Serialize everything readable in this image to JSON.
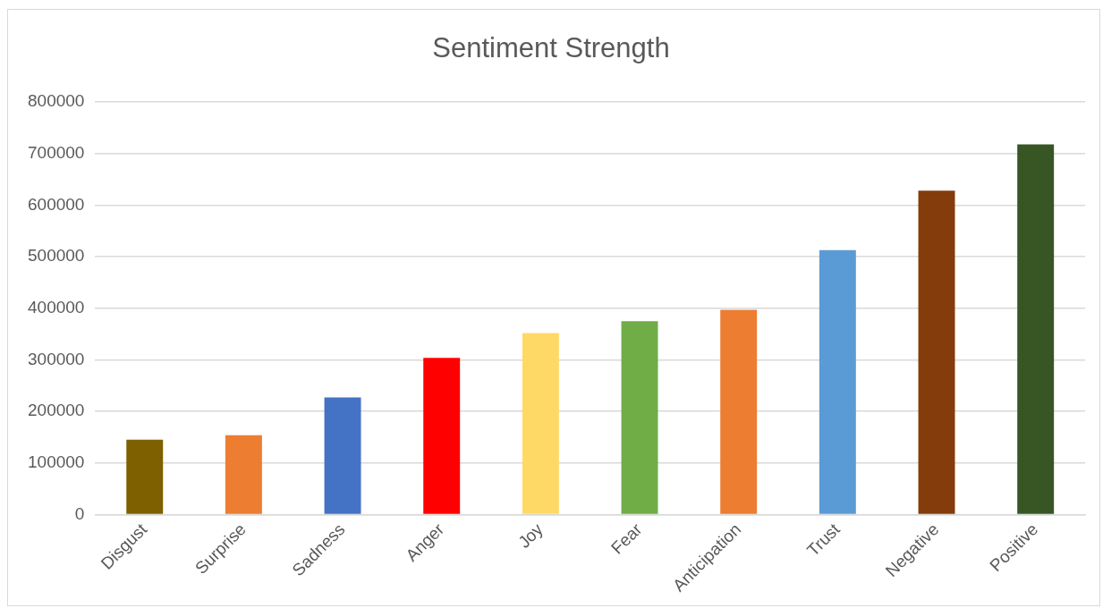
{
  "chart_data": {
    "type": "bar",
    "title": "Sentiment Strength",
    "categories": [
      "Disgust",
      "Surprise",
      "Sadness",
      "Anger",
      "Joy",
      "Fear",
      "Anticipation",
      "Trust",
      "Negative",
      "Positive"
    ],
    "values": [
      145000,
      154000,
      227000,
      304000,
      352000,
      375000,
      397000,
      513000,
      628000,
      718000
    ],
    "colors": [
      "#7f6000",
      "#ed7d31",
      "#4472c4",
      "#ff0000",
      "#ffd966",
      "#70ad47",
      "#ed7d31",
      "#5b9bd5",
      "#843c0c",
      "#375623"
    ],
    "ylim": [
      0,
      800000
    ],
    "yticks": [
      0,
      100000,
      200000,
      300000,
      400000,
      500000,
      600000,
      700000,
      800000
    ],
    "grid": "y",
    "legend": false
  }
}
